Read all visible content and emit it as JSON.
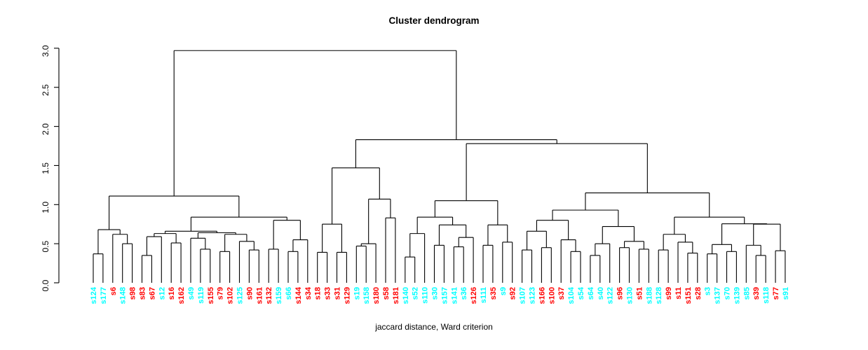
{
  "title": "Cluster dendrogram",
  "footer": "jaccard distance, Ward criterion",
  "colors": {
    "cyan": "#00FFFF",
    "red": "#FF0000",
    "line": "#000000"
  },
  "chart_data": {
    "type": "dendrogram",
    "title": "Cluster dendrogram",
    "xlabel": "jaccard distance, Ward criterion",
    "ylabel": "",
    "ylim": [
      0.0,
      3.0
    ],
    "yticks": [
      "0.0",
      "0.5",
      "1.0",
      "1.5",
      "2.0",
      "2.5",
      "3.0"
    ],
    "grid": false,
    "leaves": [
      {
        "label": "s124",
        "color": "cyan"
      },
      {
        "label": "s177",
        "color": "cyan"
      },
      {
        "label": "s6",
        "color": "red"
      },
      {
        "label": "s148",
        "color": "cyan"
      },
      {
        "label": "s98",
        "color": "red"
      },
      {
        "label": "s83",
        "color": "red"
      },
      {
        "label": "s67",
        "color": "red"
      },
      {
        "label": "s12",
        "color": "cyan"
      },
      {
        "label": "s16",
        "color": "red"
      },
      {
        "label": "s162",
        "color": "red"
      },
      {
        "label": "s49",
        "color": "cyan"
      },
      {
        "label": "s119",
        "color": "cyan"
      },
      {
        "label": "s155",
        "color": "red"
      },
      {
        "label": "s79",
        "color": "red"
      },
      {
        "label": "s102",
        "color": "red"
      },
      {
        "label": "s125",
        "color": "cyan"
      },
      {
        "label": "s90",
        "color": "red"
      },
      {
        "label": "s161",
        "color": "red"
      },
      {
        "label": "s132",
        "color": "red"
      },
      {
        "label": "s159",
        "color": "cyan"
      },
      {
        "label": "s66",
        "color": "cyan"
      },
      {
        "label": "s144",
        "color": "red"
      },
      {
        "label": "s34",
        "color": "red"
      },
      {
        "label": "s18",
        "color": "red"
      },
      {
        "label": "s33",
        "color": "red"
      },
      {
        "label": "s31",
        "color": "red"
      },
      {
        "label": "s129",
        "color": "red"
      },
      {
        "label": "s19",
        "color": "cyan"
      },
      {
        "label": "s158",
        "color": "cyan"
      },
      {
        "label": "s180",
        "color": "red"
      },
      {
        "label": "s58",
        "color": "red"
      },
      {
        "label": "s181",
        "color": "red"
      },
      {
        "label": "s140",
        "color": "cyan"
      },
      {
        "label": "s52",
        "color": "cyan"
      },
      {
        "label": "s110",
        "color": "cyan"
      },
      {
        "label": "s30",
        "color": "cyan"
      },
      {
        "label": "s157",
        "color": "cyan"
      },
      {
        "label": "s141",
        "color": "cyan"
      },
      {
        "label": "s36",
        "color": "cyan"
      },
      {
        "label": "s126",
        "color": "red"
      },
      {
        "label": "s111",
        "color": "cyan"
      },
      {
        "label": "s35",
        "color": "red"
      },
      {
        "label": "s9",
        "color": "cyan"
      },
      {
        "label": "s92",
        "color": "red"
      },
      {
        "label": "s107",
        "color": "cyan"
      },
      {
        "label": "s123",
        "color": "cyan"
      },
      {
        "label": "s166",
        "color": "red"
      },
      {
        "label": "s100",
        "color": "red"
      },
      {
        "label": "s37",
        "color": "red"
      },
      {
        "label": "s104",
        "color": "cyan"
      },
      {
        "label": "s54",
        "color": "cyan"
      },
      {
        "label": "s64",
        "color": "cyan"
      },
      {
        "label": "s40",
        "color": "cyan"
      },
      {
        "label": "s122",
        "color": "cyan"
      },
      {
        "label": "s96",
        "color": "red"
      },
      {
        "label": "s130",
        "color": "cyan"
      },
      {
        "label": "s51",
        "color": "red"
      },
      {
        "label": "s188",
        "color": "cyan"
      },
      {
        "label": "s128",
        "color": "cyan"
      },
      {
        "label": "s99",
        "color": "red"
      },
      {
        "label": "s11",
        "color": "red"
      },
      {
        "label": "s151",
        "color": "red"
      },
      {
        "label": "s28",
        "color": "red"
      },
      {
        "label": "s3",
        "color": "cyan"
      },
      {
        "label": "s137",
        "color": "cyan"
      },
      {
        "label": "s70",
        "color": "cyan"
      },
      {
        "label": "s139",
        "color": "cyan"
      },
      {
        "label": "s85",
        "color": "cyan"
      },
      {
        "label": "s39",
        "color": "red"
      },
      {
        "label": "s118",
        "color": "cyan"
      },
      {
        "label": "s77",
        "color": "red"
      },
      {
        "label": "s91",
        "color": "cyan"
      }
    ],
    "tree": [
      2.97,
      [
        1.11,
        [
          0.68,
          [
            0.37,
            "s124",
            "s177"
          ],
          [
            0.62,
            "s6",
            [
              0.5,
              "s148",
              "s98"
            ]
          ]
        ],
        [
          0.84,
          [
            0.66,
            [
              0.63,
              [
                0.59,
                [
                  0.35,
                  "s83",
                  "s67"
                ],
                "s12"
              ],
              [
                0.51,
                "s16",
                "s162"
              ]
            ],
            [
              0.64,
              [
                0.57,
                "s49",
                [
                  0.43,
                  "s119",
                  "s155"
                ]
              ],
              [
                0.62,
                [
                  0.4,
                  "s79",
                  "s102"
                ],
                [
                  0.53,
                  "s125",
                  [
                    0.42,
                    "s90",
                    "s161"
                  ]
                ]
              ]
            ]
          ],
          [
            0.8,
            [
              0.43,
              "s132",
              "s159"
            ],
            [
              0.55,
              [
                0.4,
                "s66",
                "s144"
              ],
              "s34"
            ]
          ]
        ]
      ],
      [
        1.83,
        [
          1.47,
          [
            0.75,
            [
              0.39,
              "s18",
              "s33"
            ],
            [
              0.39,
              "s31",
              "s129"
            ]
          ],
          [
            1.07,
            [
              0.5,
              [
                0.47,
                "s19",
                "s158"
              ],
              "s180"
            ],
            [
              0.83,
              "s58",
              "s181"
            ]
          ]
        ],
        [
          1.78,
          [
            1.05,
            [
              0.84,
              [
                0.63,
                [
                  0.33,
                  "s140",
                  "s52"
                ],
                "s110"
              ],
              [
                0.74,
                [
                  0.48,
                  "s30",
                  "s157"
                ],
                [
                  0.58,
                  [
                    0.46,
                    "s141",
                    "s36"
                  ],
                  "s126"
                ]
              ]
            ],
            [
              0.74,
              [
                0.48,
                "s111",
                "s35"
              ],
              [
                0.52,
                "s9",
                "s92"
              ]
            ]
          ],
          [
            1.15,
            [
              0.93,
              [
                0.8,
                [
                  0.66,
                  [
                    0.42,
                    "s107",
                    "s123"
                  ],
                  [
                    0.45,
                    "s166",
                    "s100"
                  ]
                ],
                [
                  0.55,
                  "s37",
                  [
                    0.4,
                    "s104",
                    "s54"
                  ]
                ]
              ],
              [
                0.72,
                [
                  0.5,
                  [
                    0.35,
                    "s64",
                    "s40"
                  ],
                  "s122"
                ],
                [
                  0.53,
                  [
                    0.45,
                    "s96",
                    "s130"
                  ],
                  [
                    0.43,
                    "s51",
                    "s188"
                  ]
                ]
              ]
            ],
            [
              0.84,
              [
                0.62,
                [
                  0.42,
                  "s128",
                  "s99"
                ],
                [
                  0.52,
                  "s11",
                  [
                    0.38,
                    "s151",
                    "s28"
                  ]
                ]
              ],
              [
                0.755,
                [
                  0.49,
                  [
                    0.37,
                    "s3",
                    "s137"
                  ],
                  [
                    0.4,
                    "s70",
                    "s139"
                  ]
                ],
                [
                  0.75,
                  [
                    0.48,
                    "s85",
                    [
                      0.35,
                      "s39",
                      "s118"
                    ]
                  ],
                  [
                    0.41,
                    "s77",
                    "s91"
                  ]
                ]
              ]
            ]
          ]
        ]
      ]
    ]
  }
}
